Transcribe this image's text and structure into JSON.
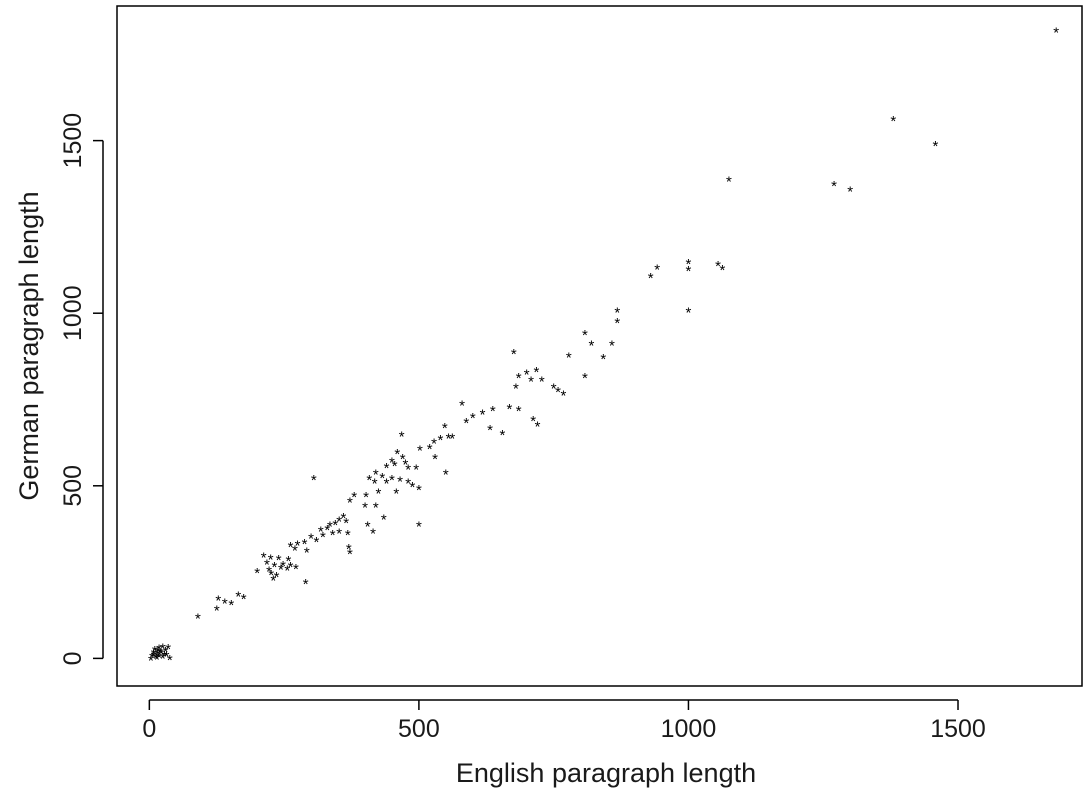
{
  "chart_data": {
    "type": "scatter",
    "title": "",
    "xlabel": "English paragraph length",
    "ylabel": "German paragraph length",
    "xlim": [
      -60,
      1730
    ],
    "ylim": [
      -80,
      1890
    ],
    "x_ticks": [
      0,
      500,
      1000,
      1500
    ],
    "y_ticks": [
      0,
      500,
      1000,
      1500
    ],
    "marker": "*",
    "grid": false,
    "points": [
      {
        "x": 1682,
        "y": 1816
      },
      {
        "x": 1380,
        "y": 1560
      },
      {
        "x": 1458,
        "y": 1488
      },
      {
        "x": 1075,
        "y": 1385
      },
      {
        "x": 1270,
        "y": 1372
      },
      {
        "x": 1300,
        "y": 1355
      },
      {
        "x": 1000,
        "y": 1145
      },
      {
        "x": 1000,
        "y": 1125
      },
      {
        "x": 1055,
        "y": 1140
      },
      {
        "x": 1063,
        "y": 1128
      },
      {
        "x": 942,
        "y": 1130
      },
      {
        "x": 930,
        "y": 1105
      },
      {
        "x": 1000,
        "y": 1005
      },
      {
        "x": 868,
        "y": 1005
      },
      {
        "x": 868,
        "y": 975
      },
      {
        "x": 808,
        "y": 940
      },
      {
        "x": 820,
        "y": 910
      },
      {
        "x": 858,
        "y": 910
      },
      {
        "x": 842,
        "y": 870
      },
      {
        "x": 778,
        "y": 875
      },
      {
        "x": 676,
        "y": 885
      },
      {
        "x": 808,
        "y": 815
      },
      {
        "x": 700,
        "y": 825
      },
      {
        "x": 718,
        "y": 832
      },
      {
        "x": 685,
        "y": 815
      },
      {
        "x": 708,
        "y": 805
      },
      {
        "x": 728,
        "y": 805
      },
      {
        "x": 750,
        "y": 785
      },
      {
        "x": 758,
        "y": 775
      },
      {
        "x": 768,
        "y": 765
      },
      {
        "x": 680,
        "y": 785
      },
      {
        "x": 580,
        "y": 735
      },
      {
        "x": 618,
        "y": 710
      },
      {
        "x": 637,
        "y": 720
      },
      {
        "x": 668,
        "y": 725
      },
      {
        "x": 685,
        "y": 720
      },
      {
        "x": 600,
        "y": 700
      },
      {
        "x": 588,
        "y": 685
      },
      {
        "x": 632,
        "y": 665
      },
      {
        "x": 655,
        "y": 650
      },
      {
        "x": 712,
        "y": 690
      },
      {
        "x": 720,
        "y": 675
      },
      {
        "x": 548,
        "y": 670
      },
      {
        "x": 555,
        "y": 640
      },
      {
        "x": 540,
        "y": 635
      },
      {
        "x": 562,
        "y": 640
      },
      {
        "x": 528,
        "y": 625
      },
      {
        "x": 520,
        "y": 610
      },
      {
        "x": 502,
        "y": 605
      },
      {
        "x": 468,
        "y": 645
      },
      {
        "x": 460,
        "y": 595
      },
      {
        "x": 470,
        "y": 580
      },
      {
        "x": 450,
        "y": 570
      },
      {
        "x": 440,
        "y": 555
      },
      {
        "x": 455,
        "y": 560
      },
      {
        "x": 475,
        "y": 565
      },
      {
        "x": 480,
        "y": 550
      },
      {
        "x": 495,
        "y": 550
      },
      {
        "x": 530,
        "y": 580
      },
      {
        "x": 550,
        "y": 535
      },
      {
        "x": 420,
        "y": 535
      },
      {
        "x": 432,
        "y": 525
      },
      {
        "x": 408,
        "y": 520
      },
      {
        "x": 418,
        "y": 510
      },
      {
        "x": 440,
        "y": 510
      },
      {
        "x": 450,
        "y": 520
      },
      {
        "x": 465,
        "y": 515
      },
      {
        "x": 480,
        "y": 510
      },
      {
        "x": 488,
        "y": 500
      },
      {
        "x": 458,
        "y": 480
      },
      {
        "x": 500,
        "y": 490
      },
      {
        "x": 305,
        "y": 520
      },
      {
        "x": 380,
        "y": 470
      },
      {
        "x": 372,
        "y": 455
      },
      {
        "x": 402,
        "y": 470
      },
      {
        "x": 425,
        "y": 480
      },
      {
        "x": 400,
        "y": 440
      },
      {
        "x": 420,
        "y": 440
      },
      {
        "x": 435,
        "y": 405
      },
      {
        "x": 500,
        "y": 385
      },
      {
        "x": 405,
        "y": 385
      },
      {
        "x": 415,
        "y": 365
      },
      {
        "x": 360,
        "y": 410
      },
      {
        "x": 352,
        "y": 400
      },
      {
        "x": 365,
        "y": 395
      },
      {
        "x": 345,
        "y": 390
      },
      {
        "x": 335,
        "y": 385
      },
      {
        "x": 330,
        "y": 375
      },
      {
        "x": 318,
        "y": 370
      },
      {
        "x": 322,
        "y": 355
      },
      {
        "x": 340,
        "y": 360
      },
      {
        "x": 352,
        "y": 365
      },
      {
        "x": 368,
        "y": 360
      },
      {
        "x": 300,
        "y": 350
      },
      {
        "x": 310,
        "y": 340
      },
      {
        "x": 288,
        "y": 335
      },
      {
        "x": 275,
        "y": 330
      },
      {
        "x": 262,
        "y": 325
      },
      {
        "x": 270,
        "y": 315
      },
      {
        "x": 292,
        "y": 310
      },
      {
        "x": 370,
        "y": 320
      },
      {
        "x": 372,
        "y": 305
      },
      {
        "x": 212,
        "y": 295
      },
      {
        "x": 225,
        "y": 290
      },
      {
        "x": 240,
        "y": 288
      },
      {
        "x": 258,
        "y": 285
      },
      {
        "x": 218,
        "y": 275
      },
      {
        "x": 232,
        "y": 268
      },
      {
        "x": 248,
        "y": 270
      },
      {
        "x": 262,
        "y": 268
      },
      {
        "x": 272,
        "y": 262
      },
      {
        "x": 244,
        "y": 260
      },
      {
        "x": 256,
        "y": 258
      },
      {
        "x": 222,
        "y": 255
      },
      {
        "x": 200,
        "y": 250
      },
      {
        "x": 226,
        "y": 245
      },
      {
        "x": 236,
        "y": 238
      },
      {
        "x": 230,
        "y": 228
      },
      {
        "x": 290,
        "y": 218
      },
      {
        "x": 165,
        "y": 182
      },
      {
        "x": 175,
        "y": 175
      },
      {
        "x": 128,
        "y": 170
      },
      {
        "x": 140,
        "y": 162
      },
      {
        "x": 152,
        "y": 158
      },
      {
        "x": 125,
        "y": 142
      },
      {
        "x": 90,
        "y": 118
      },
      {
        "x": 10,
        "y": 25
      },
      {
        "x": 18,
        "y": 28
      },
      {
        "x": 25,
        "y": 32
      },
      {
        "x": 30,
        "y": 22
      },
      {
        "x": 35,
        "y": 30
      },
      {
        "x": 8,
        "y": 15
      },
      {
        "x": 15,
        "y": 12
      },
      {
        "x": 22,
        "y": 16
      },
      {
        "x": 28,
        "y": 10
      },
      {
        "x": 5,
        "y": 5
      },
      {
        "x": 12,
        "y": 3
      },
      {
        "x": 18,
        "y": 6
      },
      {
        "x": 25,
        "y": 2
      },
      {
        "x": 32,
        "y": 8
      },
      {
        "x": 38,
        "y": -2
      },
      {
        "x": 3,
        "y": -3
      },
      {
        "x": 14,
        "y": -1
      },
      {
        "x": 20,
        "y": 18
      },
      {
        "x": 8,
        "y": 8
      },
      {
        "x": 16,
        "y": 22
      }
    ]
  }
}
